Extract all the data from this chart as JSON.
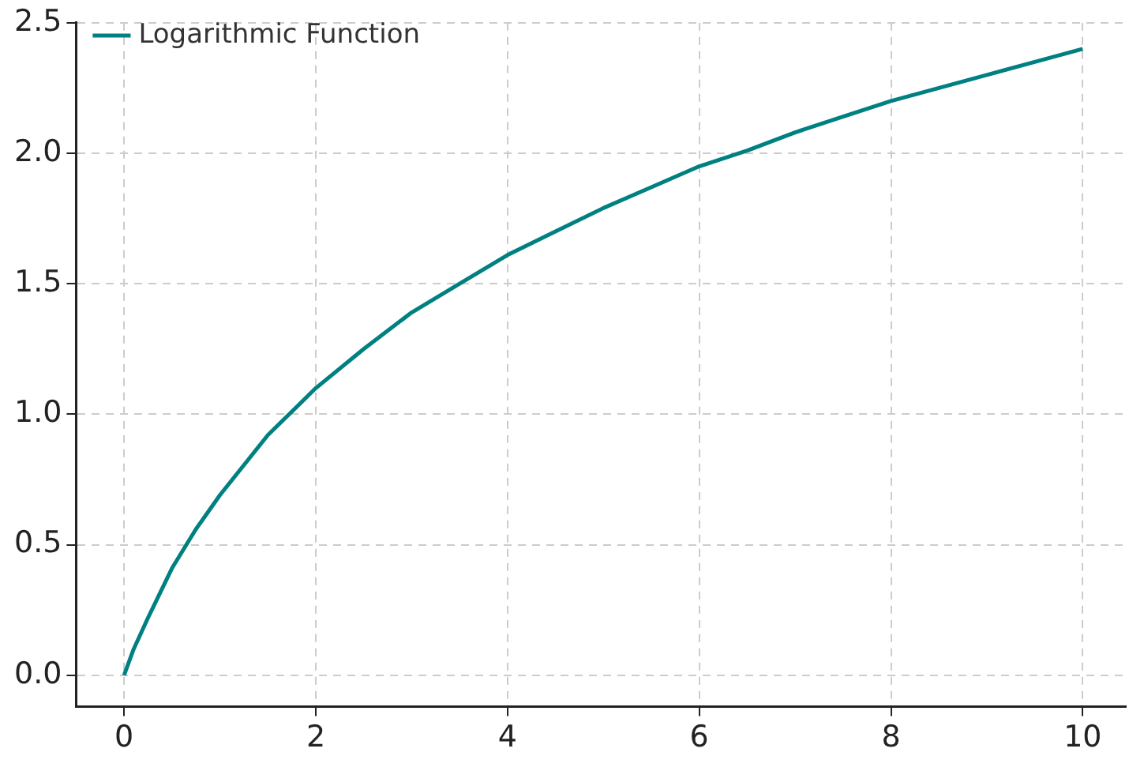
{
  "chart_data": {
    "type": "line",
    "x": [
      0,
      0.1,
      0.25,
      0.5,
      0.75,
      1,
      1.5,
      2,
      2.5,
      3,
      3.5,
      4,
      4.5,
      5,
      5.5,
      6,
      6.5,
      7,
      7.5,
      8,
      8.5,
      9,
      9.5,
      10
    ],
    "series": [
      {
        "name": "Logarithmic Function",
        "color": "#008080",
        "values": [
          0,
          0.1,
          0.22,
          0.41,
          0.56,
          0.69,
          0.92,
          1.1,
          1.25,
          1.39,
          1.5,
          1.61,
          1.7,
          1.79,
          1.87,
          1.95,
          2.01,
          2.08,
          2.14,
          2.2,
          2.25,
          2.3,
          2.35,
          2.4
        ]
      }
    ],
    "xlim": [
      -0.5,
      10.45
    ],
    "xticks": [
      0,
      2,
      4,
      6,
      8,
      10
    ],
    "ylim": [
      -0.12,
      2.5
    ],
    "yticks": [
      {
        "value": 0,
        "label": "0.0"
      },
      0.5,
      {
        "value": 1,
        "label": "1.0"
      },
      1.5,
      {
        "value": 2,
        "label": "2.0"
      },
      2.5
    ],
    "grid": true,
    "legend": "top left",
    "marker": "none",
    "line_style": "solid"
  }
}
